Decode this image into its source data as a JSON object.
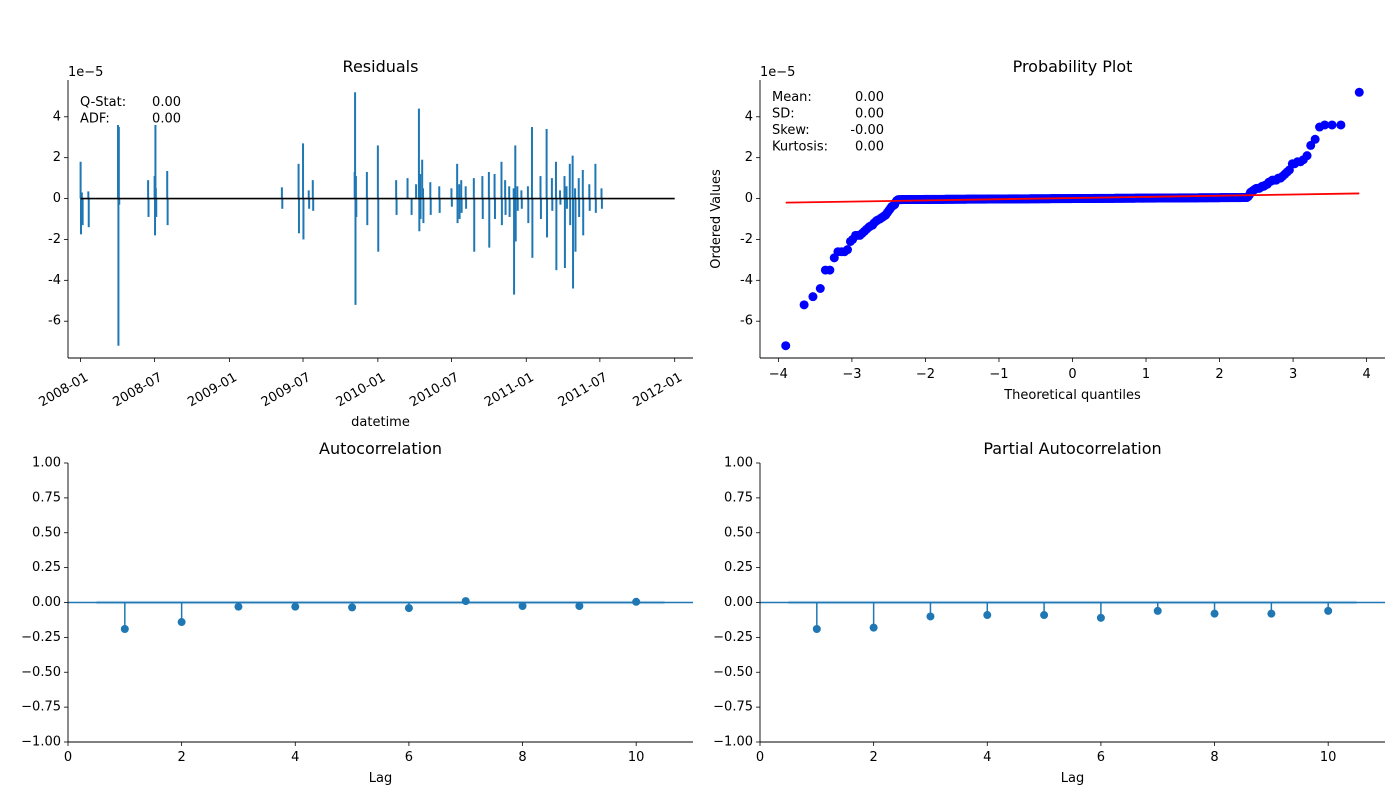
{
  "chart_data": [
    {
      "id": "residuals",
      "type": "line",
      "title": "Residuals",
      "xlabel": "datetime",
      "ylabel": "",
      "y_scale_label": "1e−5",
      "x_tick_labels": [
        "2008-01",
        "2008-07",
        "2009-01",
        "2009-07",
        "2010-01",
        "2010-07",
        "2011-01",
        "2011-07",
        "2012-01"
      ],
      "y_ticks": [
        -6,
        -4,
        -2,
        0,
        2,
        4
      ],
      "xlim": [
        "2007-12-01",
        "2012-02-15"
      ],
      "ylim": [
        -7.8,
        5.8
      ],
      "stats": [
        {
          "label": "Q-Stat:",
          "value": "0.00"
        },
        {
          "label": "ADF:",
          "value": "0.00"
        }
      ],
      "colors": {
        "series": "#1f77b4",
        "zero_line": "#000000"
      },
      "spikes": [
        {
          "x": "2008-01-01",
          "y": 1.8
        },
        {
          "x": "2008-01-02",
          "y": -1.75
        },
        {
          "x": "2008-01-04",
          "y": 0.3
        },
        {
          "x": "2008-01-06",
          "y": -1.3
        },
        {
          "x": "2008-01-20",
          "y": 0.35
        },
        {
          "x": "2008-01-21",
          "y": -1.4
        },
        {
          "x": "2008-04-02",
          "y": 3.6
        },
        {
          "x": "2008-04-03",
          "y": -7.2
        },
        {
          "x": "2008-04-04",
          "y": 3.5
        },
        {
          "x": "2008-04-05",
          "y": -0.3
        },
        {
          "x": "2008-06-15",
          "y": 0.9
        },
        {
          "x": "2008-06-16",
          "y": -0.9
        },
        {
          "x": "2008-07-01",
          "y": 1.1
        },
        {
          "x": "2008-07-02",
          "y": -1.8
        },
        {
          "x": "2008-07-03",
          "y": 3.6
        },
        {
          "x": "2008-07-04",
          "y": 0.5
        },
        {
          "x": "2008-07-05",
          "y": -0.9
        },
        {
          "x": "2008-08-01",
          "y": 1.35
        },
        {
          "x": "2008-08-02",
          "y": -1.3
        },
        {
          "x": "2009-05-10",
          "y": 0.55
        },
        {
          "x": "2009-05-11",
          "y": -0.5
        },
        {
          "x": "2009-06-20",
          "y": 1.7
        },
        {
          "x": "2009-06-21",
          "y": -1.7
        },
        {
          "x": "2009-07-01",
          "y": 2.7
        },
        {
          "x": "2009-07-02",
          "y": -2.0
        },
        {
          "x": "2009-07-15",
          "y": 0.4
        },
        {
          "x": "2009-07-16",
          "y": -0.5
        },
        {
          "x": "2009-07-25",
          "y": 0.9
        },
        {
          "x": "2009-07-26",
          "y": -0.6
        },
        {
          "x": "2009-11-05",
          "y": 1.3
        },
        {
          "x": "2009-11-06",
          "y": 5.2
        },
        {
          "x": "2009-11-07",
          "y": -5.2
        },
        {
          "x": "2009-11-08",
          "y": 1.1
        },
        {
          "x": "2009-11-09",
          "y": -0.9
        },
        {
          "x": "2009-12-05",
          "y": 1.3
        },
        {
          "x": "2009-12-06",
          "y": -1.3
        },
        {
          "x": "2010-01-01",
          "y": 2.6
        },
        {
          "x": "2010-01-02",
          "y": -2.6
        },
        {
          "x": "2010-02-15",
          "y": 0.9
        },
        {
          "x": "2010-02-16",
          "y": -0.8
        },
        {
          "x": "2010-03-15",
          "y": 1.0
        },
        {
          "x": "2010-03-25",
          "y": -0.8
        },
        {
          "x": "2010-04-05",
          "y": 0.7
        },
        {
          "x": "2010-04-12",
          "y": 4.4
        },
        {
          "x": "2010-04-13",
          "y": -1.6
        },
        {
          "x": "2010-04-15",
          "y": 1.2
        },
        {
          "x": "2010-04-16",
          "y": -1.0
        },
        {
          "x": "2010-04-20",
          "y": 1.9
        },
        {
          "x": "2010-04-22",
          "y": 0.5
        },
        {
          "x": "2010-04-23",
          "y": -1.2
        },
        {
          "x": "2010-05-10",
          "y": 0.8
        },
        {
          "x": "2010-05-11",
          "y": -0.8
        },
        {
          "x": "2010-06-01",
          "y": 0.6
        },
        {
          "x": "2010-06-02",
          "y": -0.7
        },
        {
          "x": "2010-07-01",
          "y": 0.5
        },
        {
          "x": "2010-07-02",
          "y": -0.4
        },
        {
          "x": "2010-07-15",
          "y": 1.7
        },
        {
          "x": "2010-07-16",
          "y": -1.2
        },
        {
          "x": "2010-07-20",
          "y": 0.7
        },
        {
          "x": "2010-07-21",
          "y": -1.0
        },
        {
          "x": "2010-07-25",
          "y": 0.9
        },
        {
          "x": "2010-07-26",
          "y": -0.7
        },
        {
          "x": "2010-08-05",
          "y": 0.6
        },
        {
          "x": "2010-08-06",
          "y": -0.5
        },
        {
          "x": "2010-08-25",
          "y": 1.0
        },
        {
          "x": "2010-08-26",
          "y": -2.6
        },
        {
          "x": "2010-09-15",
          "y": 1.1
        },
        {
          "x": "2010-09-16",
          "y": -1.0
        },
        {
          "x": "2010-10-01",
          "y": 1.3
        },
        {
          "x": "2010-10-02",
          "y": -2.4
        },
        {
          "x": "2010-10-15",
          "y": 1.2
        },
        {
          "x": "2010-10-16",
          "y": -1.0
        },
        {
          "x": "2010-11-01",
          "y": 1.8
        },
        {
          "x": "2010-11-02",
          "y": -1.3
        },
        {
          "x": "2010-11-10",
          "y": 0.9
        },
        {
          "x": "2010-11-11",
          "y": -0.8
        },
        {
          "x": "2010-11-20",
          "y": 0.6
        },
        {
          "x": "2010-11-21",
          "y": -0.9
        },
        {
          "x": "2010-12-01",
          "y": 0.5
        },
        {
          "x": "2010-12-02",
          "y": -4.7
        },
        {
          "x": "2010-12-05",
          "y": 2.6
        },
        {
          "x": "2010-12-06",
          "y": -2.1
        },
        {
          "x": "2010-12-10",
          "y": 0.6
        },
        {
          "x": "2010-12-11",
          "y": -0.6
        },
        {
          "x": "2010-12-20",
          "y": 0.4
        },
        {
          "x": "2010-12-21",
          "y": -0.5
        },
        {
          "x": "2011-01-05",
          "y": 0.6
        },
        {
          "x": "2011-01-06",
          "y": -1.2
        },
        {
          "x": "2011-01-15",
          "y": 3.5
        },
        {
          "x": "2011-01-16",
          "y": -2.9
        },
        {
          "x": "2011-02-05",
          "y": 1.1
        },
        {
          "x": "2011-02-06",
          "y": -1.0
        },
        {
          "x": "2011-02-20",
          "y": 3.4
        },
        {
          "x": "2011-02-21",
          "y": -1.9
        },
        {
          "x": "2011-03-05",
          "y": 1.0
        },
        {
          "x": "2011-03-06",
          "y": -0.6
        },
        {
          "x": "2011-03-15",
          "y": 1.8
        },
        {
          "x": "2011-03-16",
          "y": -3.5
        },
        {
          "x": "2011-03-25",
          "y": 0.4
        },
        {
          "x": "2011-03-26",
          "y": -0.3
        },
        {
          "x": "2011-04-05",
          "y": 1.1
        },
        {
          "x": "2011-04-06",
          "y": -3.4
        },
        {
          "x": "2011-04-10",
          "y": 0.6
        },
        {
          "x": "2011-04-11",
          "y": -0.5
        },
        {
          "x": "2011-04-18",
          "y": 1.7
        },
        {
          "x": "2011-04-19",
          "y": -1.3
        },
        {
          "x": "2011-04-25",
          "y": 2.1
        },
        {
          "x": "2011-04-26",
          "y": -4.4
        },
        {
          "x": "2011-05-01",
          "y": 0.5
        },
        {
          "x": "2011-05-02",
          "y": -2.6
        },
        {
          "x": "2011-05-10",
          "y": 1.0
        },
        {
          "x": "2011-05-11",
          "y": -0.9
        },
        {
          "x": "2011-05-20",
          "y": 1.4
        },
        {
          "x": "2011-05-21",
          "y": -1.8
        },
        {
          "x": "2011-06-05",
          "y": 0.7
        },
        {
          "x": "2011-06-06",
          "y": -0.6
        },
        {
          "x": "2011-06-20",
          "y": 1.7
        },
        {
          "x": "2011-06-21",
          "y": -0.7
        },
        {
          "x": "2011-07-05",
          "y": 0.5
        },
        {
          "x": "2011-07-06",
          "y": -0.5
        }
      ]
    },
    {
      "id": "probability-plot",
      "type": "scatter",
      "title": "Probability Plot",
      "xlabel": "Theoretical quantiles",
      "ylabel": "Ordered Values",
      "y_scale_label": "1e−5",
      "x_ticks": [
        -4,
        -3,
        -2,
        -1,
        0,
        1,
        2,
        3,
        4
      ],
      "y_ticks": [
        -6,
        -4,
        -2,
        0,
        2,
        4
      ],
      "xlim": [
        -4.25,
        4.25
      ],
      "ylim": [
        -7.8,
        5.8
      ],
      "stats": [
        {
          "label": "Mean:",
          "value": "0.00"
        },
        {
          "label": "SD:",
          "value": "0.00"
        },
        {
          "label": "Skew:",
          "value": "-0.00"
        },
        {
          "label": "Kurtosis:",
          "value": "0.00"
        }
      ],
      "colors": {
        "points": "#0000ff",
        "fit_line": "#ff0000"
      },
      "fit_line": {
        "x": [
          -3.9,
          3.9
        ],
        "y": [
          -0.2,
          0.25
        ]
      },
      "points": {
        "tail_low": [
          [
            -3.9,
            -7.2
          ],
          [
            -3.65,
            -5.2
          ],
          [
            -3.53,
            -4.8
          ],
          [
            -3.43,
            -4.4
          ],
          [
            -3.36,
            -3.5
          ],
          [
            -3.3,
            -3.5
          ],
          [
            -3.24,
            -2.9
          ],
          [
            -3.19,
            -2.6
          ],
          [
            -3.14,
            -2.6
          ],
          [
            -3.1,
            -2.6
          ],
          [
            -3.06,
            -2.5
          ],
          [
            -3.02,
            -2.1
          ],
          [
            -2.99,
            -2.0
          ],
          [
            -2.95,
            -1.8
          ],
          [
            -2.92,
            -1.8
          ],
          [
            -2.89,
            -1.8
          ],
          [
            -2.86,
            -1.7
          ],
          [
            -2.83,
            -1.6
          ],
          [
            -2.8,
            -1.5
          ],
          [
            -2.77,
            -1.4
          ],
          [
            -2.75,
            -1.35
          ],
          [
            -2.72,
            -1.3
          ],
          [
            -2.7,
            -1.2
          ],
          [
            -2.67,
            -1.1
          ],
          [
            -2.65,
            -1.05
          ],
          [
            -2.62,
            -1.0
          ],
          [
            -2.6,
            -0.95
          ],
          [
            -2.58,
            -0.9
          ],
          [
            -2.56,
            -0.85
          ],
          [
            -2.54,
            -0.8
          ],
          [
            -2.52,
            -0.7
          ],
          [
            -2.5,
            -0.6
          ],
          [
            -2.48,
            -0.5
          ],
          [
            -2.46,
            -0.4
          ],
          [
            -2.44,
            -0.35
          ],
          [
            -2.42,
            -0.3
          ],
          [
            -2.41,
            -0.2
          ],
          [
            -2.39,
            -0.1
          ],
          [
            -2.37,
            -0.05
          ]
        ],
        "center_band": {
          "x_range": [
            -2.35,
            2.35
          ],
          "y_range": [
            -0.05,
            0.05
          ]
        },
        "tail_high": [
          [
            2.37,
            0.05
          ],
          [
            2.39,
            0.1
          ],
          [
            2.41,
            0.2
          ],
          [
            2.42,
            0.3
          ],
          [
            2.44,
            0.35
          ],
          [
            2.46,
            0.4
          ],
          [
            2.48,
            0.45
          ],
          [
            2.5,
            0.5
          ],
          [
            2.52,
            0.5
          ],
          [
            2.54,
            0.5
          ],
          [
            2.56,
            0.55
          ],
          [
            2.58,
            0.6
          ],
          [
            2.6,
            0.6
          ],
          [
            2.62,
            0.65
          ],
          [
            2.65,
            0.7
          ],
          [
            2.67,
            0.8
          ],
          [
            2.7,
            0.85
          ],
          [
            2.72,
            0.9
          ],
          [
            2.75,
            0.9
          ],
          [
            2.77,
            0.9
          ],
          [
            2.8,
            1.0
          ],
          [
            2.83,
            1.0
          ],
          [
            2.86,
            1.1
          ],
          [
            2.89,
            1.2
          ],
          [
            2.92,
            1.3
          ],
          [
            2.95,
            1.4
          ],
          [
            2.99,
            1.7
          ],
          [
            3.02,
            1.7
          ],
          [
            3.06,
            1.8
          ],
          [
            3.1,
            1.8
          ],
          [
            3.14,
            1.9
          ],
          [
            3.19,
            2.1
          ],
          [
            3.24,
            2.6
          ],
          [
            3.3,
            2.9
          ],
          [
            3.36,
            3.5
          ],
          [
            3.43,
            3.6
          ],
          [
            3.53,
            3.6
          ],
          [
            3.65,
            3.6
          ],
          [
            3.9,
            5.2
          ]
        ]
      }
    },
    {
      "id": "acf",
      "type": "stem",
      "title": "Autocorrelation",
      "xlabel": "Lag",
      "ylabel": "",
      "x_ticks": [
        0,
        2,
        4,
        6,
        8,
        10
      ],
      "y_ticks": [
        -1.0,
        -0.75,
        -0.5,
        -0.25,
        0.0,
        0.25,
        0.5,
        0.75,
        1.0
      ],
      "y_tick_labels": [
        "−1.00",
        "−0.75",
        "−0.50",
        "−0.25",
        "0.00",
        "0.25",
        "0.50",
        "0.75",
        "1.00"
      ],
      "xlim": [
        0,
        11
      ],
      "ylim": [
        -1.0,
        1.0
      ],
      "band": [
        -0.012,
        0.012
      ],
      "colors": {
        "series": "#1f77b4"
      },
      "lags": [
        1,
        2,
        3,
        4,
        5,
        6,
        7,
        8,
        9,
        10
      ],
      "values": [
        -0.19,
        -0.14,
        -0.03,
        -0.03,
        -0.035,
        -0.04,
        0.01,
        -0.025,
        -0.025,
        0.005
      ]
    },
    {
      "id": "pacf",
      "type": "stem",
      "title": "Partial Autocorrelation",
      "xlabel": "Lag",
      "ylabel": "",
      "x_ticks": [
        0,
        2,
        4,
        6,
        8,
        10
      ],
      "y_ticks": [
        -1.0,
        -0.75,
        -0.5,
        -0.25,
        0.0,
        0.25,
        0.5,
        0.75,
        1.0
      ],
      "y_tick_labels": [
        "−1.00",
        "−0.75",
        "−0.50",
        "−0.25",
        "0.00",
        "0.25",
        "0.50",
        "0.75",
        "1.00"
      ],
      "xlim": [
        0,
        11
      ],
      "ylim": [
        -1.0,
        1.0
      ],
      "band": [
        -0.012,
        0.012
      ],
      "colors": {
        "series": "#1f77b4"
      },
      "lags": [
        1,
        2,
        3,
        4,
        5,
        6,
        7,
        8,
        9,
        10
      ],
      "values": [
        -0.19,
        -0.18,
        -0.1,
        -0.09,
        -0.09,
        -0.11,
        -0.06,
        -0.08,
        -0.08,
        -0.06
      ]
    }
  ]
}
